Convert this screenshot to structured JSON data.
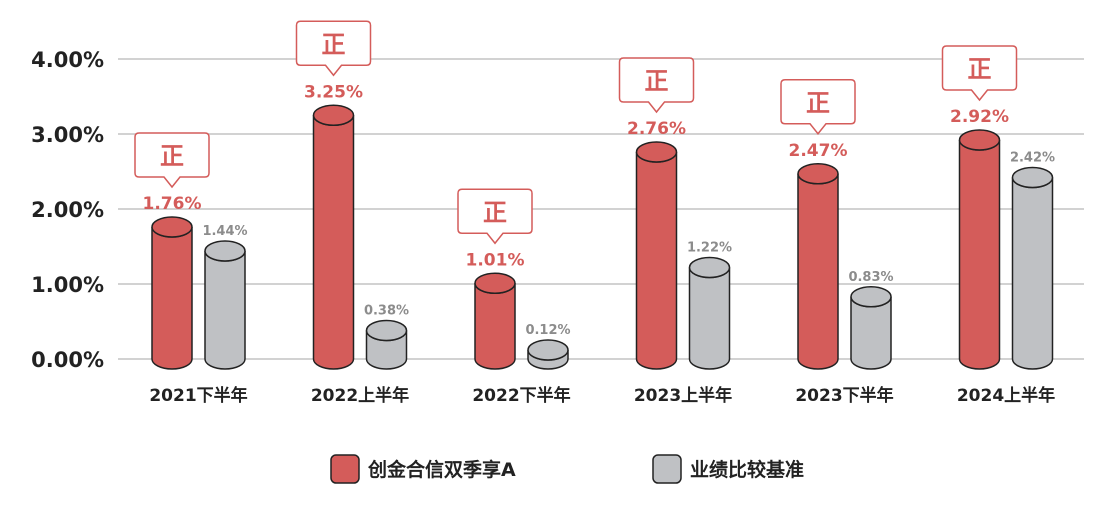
{
  "chart_data": {
    "type": "bar",
    "categories": [
      "2021下半年",
      "2022上半年",
      "2022下半年",
      "2023上半年",
      "2023下半年",
      "2024上半年"
    ],
    "series": [
      {
        "name": "创金合信双季享A",
        "values": [
          1.76,
          3.25,
          1.01,
          2.76,
          2.47,
          2.92
        ],
        "labels": [
          "1.76%",
          "3.25%",
          "1.01%",
          "2.76%",
          "2.47%",
          "2.92%"
        ],
        "color": "#d45c5a"
      },
      {
        "name": "业绩比较基准",
        "values": [
          1.44,
          0.38,
          0.12,
          1.22,
          0.83,
          2.42
        ],
        "labels": [
          "1.44%",
          "0.38%",
          "0.12%",
          "1.22%",
          "0.83%",
          "2.42%"
        ],
        "color": "#bfc1c4"
      }
    ],
    "yticks": [
      0,
      1,
      2,
      3,
      4
    ],
    "ytick_labels": [
      "0.00%",
      "1.00%",
      "2.00%",
      "3.00%",
      "4.00%"
    ],
    "ylim": [
      0,
      4
    ],
    "grid": true,
    "legend_position": "bottom-center",
    "badge_text": "正",
    "title": "",
    "xlabel": "",
    "ylabel": ""
  }
}
